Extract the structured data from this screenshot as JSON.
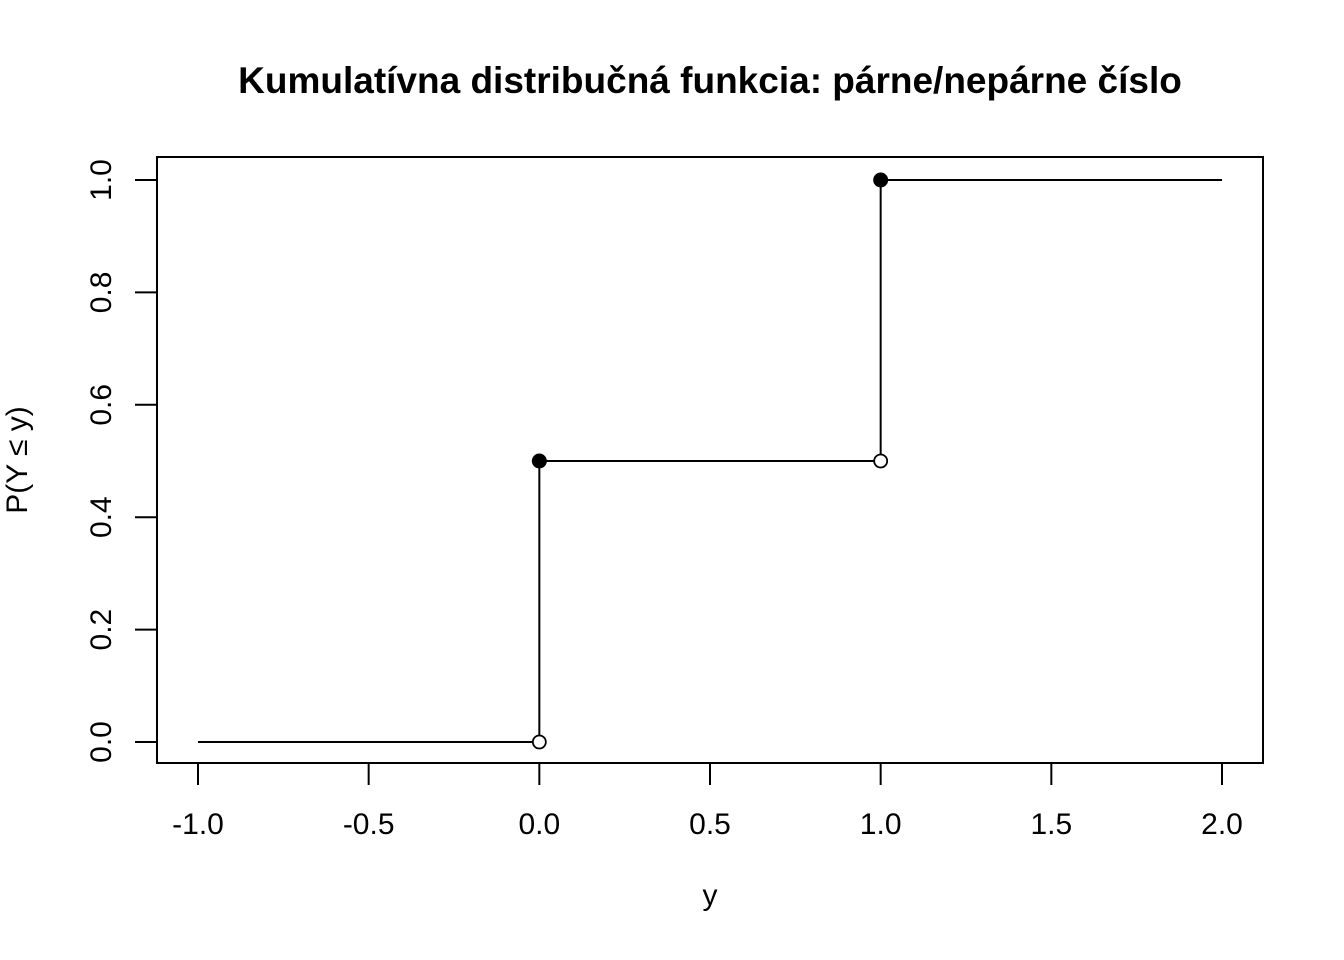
{
  "chart_data": {
    "type": "line",
    "subtype": "step-cdf",
    "title": "Kumulatívna distribučná funkcia: párne/nepárne číslo",
    "xlabel": "y",
    "ylabel": "P(Y ≤ y)",
    "xlim": [
      -1.0,
      2.0
    ],
    "ylim": [
      0.0,
      1.0
    ],
    "x_ticks": [
      -1.0,
      -0.5,
      0.0,
      0.5,
      1.0,
      1.5,
      2.0
    ],
    "x_tick_labels": [
      "-1.0",
      "-0.5",
      "0.0",
      "0.5",
      "1.0",
      "1.5",
      "2.0"
    ],
    "y_ticks": [
      0.0,
      0.2,
      0.4,
      0.6,
      0.8,
      1.0
    ],
    "y_tick_labels": [
      "0.0",
      "0.2",
      "0.4",
      "0.6",
      "0.8",
      "1.0"
    ],
    "grid": false,
    "color": "#000000",
    "horizontal_segments": [
      {
        "x_start": -1.0,
        "x_end": 0.0,
        "y": 0.0
      },
      {
        "x_start": 0.0,
        "x_end": 1.0,
        "y": 0.5
      },
      {
        "x_start": 1.0,
        "x_end": 2.0,
        "y": 1.0
      }
    ],
    "vertical_segments": [
      {
        "x": 0.0,
        "y_from": 0.0,
        "y_to": 0.5
      },
      {
        "x": 1.0,
        "y_from": 0.5,
        "y_to": 1.0
      }
    ],
    "closed_points": [
      {
        "x": 0.0,
        "y": 0.5
      },
      {
        "x": 1.0,
        "y": 1.0
      }
    ],
    "open_points": [
      {
        "x": 0.0,
        "y": 0.0
      },
      {
        "x": 1.0,
        "y": 0.5
      }
    ]
  }
}
